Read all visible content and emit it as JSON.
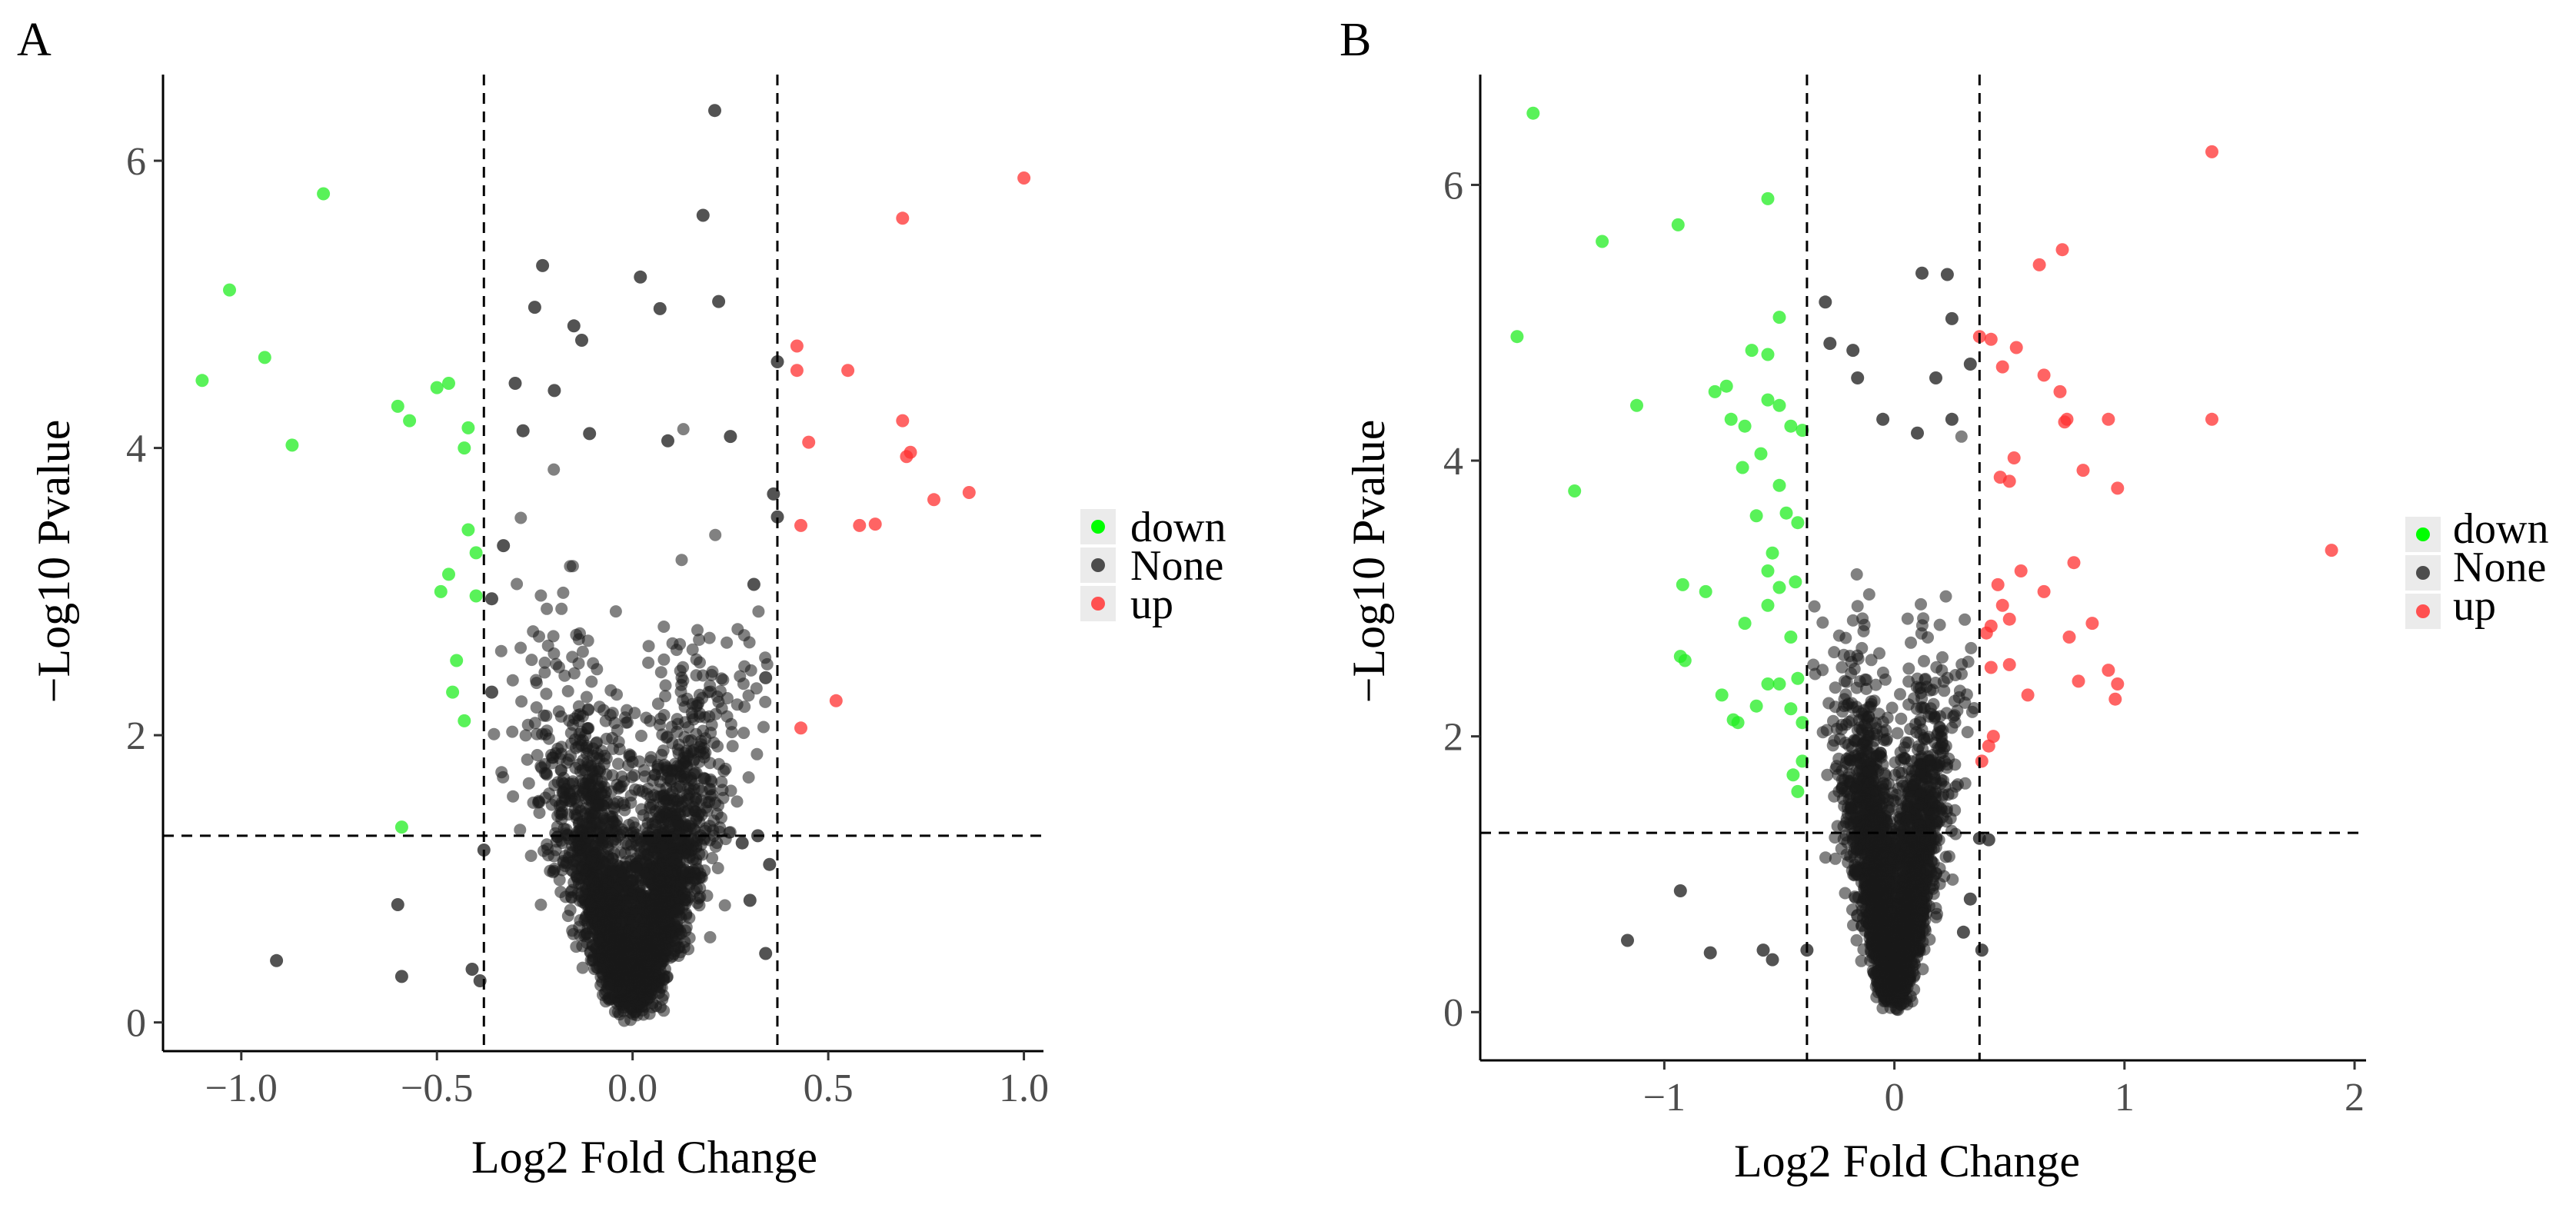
{
  "chart_data": [
    {
      "type": "scatter",
      "panel_label": "A",
      "xlabel": "Log2 Fold Change",
      "ylabel": "−Log10 Pvalue",
      "xlim": [
        -1.2,
        1.05
      ],
      "ylim": [
        -0.2,
        6.6
      ],
      "xticks": [
        -1.0,
        -0.5,
        0.0,
        0.5,
        1.0
      ],
      "xtick_labels": [
        "−1.0",
        "−0.5",
        "0.0",
        "0.5",
        "1.0"
      ],
      "yticks": [
        0,
        2,
        4,
        6
      ],
      "ytick_labels": [
        "0",
        "2",
        "4",
        "6"
      ],
      "thresholds": {
        "x": [
          -0.38,
          0.37
        ],
        "y": 1.3
      },
      "legend": [
        {
          "label": "down",
          "color": "#00FF00"
        },
        {
          "label": "None",
          "color": "#000000"
        },
        {
          "label": "up",
          "color": "#FF0000"
        }
      ],
      "legend_position": "right",
      "series": [
        {
          "name": "down",
          "color": "#00FF00",
          "points": [
            [
              -1.1,
              4.47
            ],
            [
              -1.03,
              5.1
            ],
            [
              -0.94,
              4.63
            ],
            [
              -0.87,
              4.02
            ],
            [
              -0.79,
              5.77
            ],
            [
              -0.6,
              4.29
            ],
            [
              -0.57,
              4.19
            ],
            [
              -0.5,
              4.42
            ],
            [
              -0.47,
              4.45
            ],
            [
              -0.42,
              4.14
            ],
            [
              -0.43,
              4.0
            ],
            [
              -0.42,
              3.43
            ],
            [
              -0.4,
              3.27
            ],
            [
              -0.47,
              3.12
            ],
            [
              -0.49,
              3.0
            ],
            [
              -0.4,
              2.97
            ],
            [
              -0.45,
              2.52
            ],
            [
              -0.46,
              2.3
            ],
            [
              -0.43,
              2.1
            ],
            [
              -0.59,
              1.36
            ]
          ]
        },
        {
          "name": "None",
          "color": "#000000",
          "points": [
            [
              0.21,
              6.35
            ],
            [
              0.18,
              5.62
            ],
            [
              -0.23,
              5.27
            ],
            [
              0.02,
              5.19
            ],
            [
              0.07,
              4.97
            ],
            [
              0.22,
              5.02
            ],
            [
              -0.25,
              4.98
            ],
            [
              -0.15,
              4.85
            ],
            [
              -0.13,
              4.75
            ],
            [
              -0.28,
              4.12
            ],
            [
              -0.3,
              4.45
            ],
            [
              -0.2,
              4.4
            ],
            [
              -0.11,
              4.1
            ],
            [
              0.25,
              4.08
            ],
            [
              0.09,
              4.05
            ],
            [
              0.36,
              3.68
            ],
            [
              0.37,
              3.52
            ],
            [
              0.31,
              3.05
            ],
            [
              0.34,
              2.4
            ],
            [
              -0.36,
              2.3
            ],
            [
              0.37,
              4.6
            ],
            [
              -0.33,
              3.32
            ],
            [
              -0.36,
              2.95
            ],
            [
              -0.38,
              1.2
            ],
            [
              -0.6,
              0.82
            ],
            [
              -0.59,
              0.32
            ],
            [
              -0.41,
              0.37
            ],
            [
              -0.39,
              0.29
            ],
            [
              -0.91,
              0.43
            ],
            [
              0.32,
              1.3
            ],
            [
              0.35,
              1.1
            ],
            [
              0.34,
              0.48
            ],
            [
              0.3,
              0.85
            ],
            [
              0.28,
              1.25
            ]
          ],
          "note": "Dense V-shaped cloud of several thousand non-significant genes centred at (0,0) rendered as background density"
        },
        {
          "name": "up",
          "color": "#FF0000",
          "points": [
            [
              1.0,
              5.88
            ],
            [
              0.69,
              5.6
            ],
            [
              0.42,
              4.71
            ],
            [
              0.42,
              4.54
            ],
            [
              0.55,
              4.54
            ],
            [
              0.69,
              4.19
            ],
            [
              0.71,
              3.97
            ],
            [
              0.7,
              3.94
            ],
            [
              0.45,
              4.04
            ],
            [
              0.86,
              3.69
            ],
            [
              0.77,
              3.64
            ],
            [
              0.58,
              3.46
            ],
            [
              0.62,
              3.47
            ],
            [
              0.43,
              3.46
            ],
            [
              0.52,
              2.24
            ],
            [
              0.43,
              2.05
            ]
          ]
        }
      ]
    },
    {
      "type": "scatter",
      "panel_label": "B",
      "xlabel": "Log2 Fold Change",
      "ylabel": "−Log10 Pvalue",
      "xlim": [
        -1.8,
        2.05
      ],
      "ylim": [
        -0.35,
        6.8
      ],
      "xticks": [
        -1,
        0,
        1,
        2
      ],
      "xtick_labels": [
        "−1",
        "0",
        "1",
        "2"
      ],
      "yticks": [
        0,
        2,
        4,
        6
      ],
      "ytick_labels": [
        "0",
        "2",
        "4",
        "6"
      ],
      "thresholds": {
        "x": [
          -0.38,
          0.37
        ],
        "y": 1.3
      },
      "legend": [
        {
          "label": "down",
          "color": "#00FF00"
        },
        {
          "label": "None",
          "color": "#000000"
        },
        {
          "label": "up",
          "color": "#FF0000"
        }
      ],
      "legend_position": "right",
      "series": [
        {
          "name": "down",
          "color": "#00FF00",
          "points": [
            [
              -1.57,
              6.52
            ],
            [
              -1.64,
              4.9
            ],
            [
              -1.27,
              5.59
            ],
            [
              -1.12,
              4.4
            ],
            [
              -0.94,
              5.71
            ],
            [
              -1.39,
              3.78
            ],
            [
              -0.55,
              5.9
            ],
            [
              -0.5,
              5.04
            ],
            [
              -0.62,
              4.8
            ],
            [
              -0.55,
              4.77
            ],
            [
              -0.73,
              4.54
            ],
            [
              -0.78,
              4.5
            ],
            [
              -0.71,
              4.3
            ],
            [
              -0.65,
              4.25
            ],
            [
              -0.55,
              4.44
            ],
            [
              -0.5,
              4.4
            ],
            [
              -0.45,
              4.25
            ],
            [
              -0.4,
              4.22
            ],
            [
              -0.58,
              4.05
            ],
            [
              -0.66,
              3.95
            ],
            [
              -0.5,
              3.82
            ],
            [
              -0.47,
              3.62
            ],
            [
              -0.42,
              3.55
            ],
            [
              -0.6,
              3.6
            ],
            [
              -0.53,
              3.33
            ],
            [
              -0.55,
              3.2
            ],
            [
              -0.43,
              3.12
            ],
            [
              -0.5,
              3.08
            ],
            [
              -0.92,
              3.1
            ],
            [
              -0.82,
              3.05
            ],
            [
              -0.55,
              2.95
            ],
            [
              -0.65,
              2.82
            ],
            [
              -0.45,
              2.72
            ],
            [
              -0.93,
              2.58
            ],
            [
              -0.91,
              2.55
            ],
            [
              -0.55,
              2.38
            ],
            [
              -0.5,
              2.38
            ],
            [
              -0.42,
              2.42
            ],
            [
              -0.75,
              2.3
            ],
            [
              -0.6,
              2.22
            ],
            [
              -0.7,
              2.12
            ],
            [
              -0.68,
              2.1
            ],
            [
              -0.45,
              2.2
            ],
            [
              -0.4,
              2.1
            ],
            [
              -0.44,
              1.72
            ],
            [
              -0.42,
              1.6
            ],
            [
              -0.4,
              1.82
            ]
          ]
        },
        {
          "name": "None",
          "color": "#000000",
          "points": [
            [
              0.12,
              5.36
            ],
            [
              0.23,
              5.35
            ],
            [
              0.25,
              5.03
            ],
            [
              -0.3,
              5.15
            ],
            [
              -0.28,
              4.85
            ],
            [
              -0.18,
              4.8
            ],
            [
              -0.16,
              4.6
            ],
            [
              0.18,
              4.6
            ],
            [
              0.25,
              4.3
            ],
            [
              0.33,
              4.7
            ],
            [
              -0.05,
              4.3
            ],
            [
              0.1,
              4.2
            ],
            [
              -0.93,
              0.88
            ],
            [
              -1.16,
              0.52
            ],
            [
              -0.8,
              0.43
            ],
            [
              -0.57,
              0.45
            ],
            [
              -0.53,
              0.38
            ],
            [
              -0.38,
              0.45
            ],
            [
              -0.17,
              1.03
            ],
            [
              -0.16,
              0.7
            ],
            [
              0.37,
              1.26
            ],
            [
              0.41,
              1.25
            ],
            [
              0.38,
              0.45
            ],
            [
              0.33,
              0.82
            ],
            [
              0.3,
              0.58
            ]
          ],
          "note": "Dense V-shaped cloud of several thousand non-significant genes centred at (0,0) rendered as background density"
        },
        {
          "name": "up",
          "color": "#FF0000",
          "points": [
            [
              1.38,
              6.24
            ],
            [
              0.73,
              5.53
            ],
            [
              0.63,
              5.42
            ],
            [
              0.37,
              4.9
            ],
            [
              0.42,
              4.88
            ],
            [
              0.47,
              4.68
            ],
            [
              0.53,
              4.82
            ],
            [
              0.65,
              4.62
            ],
            [
              0.72,
              4.5
            ],
            [
              0.75,
              4.3
            ],
            [
              0.74,
              4.28
            ],
            [
              0.93,
              4.3
            ],
            [
              1.38,
              4.3
            ],
            [
              0.52,
              4.02
            ],
            [
              0.5,
              3.85
            ],
            [
              0.46,
              3.88
            ],
            [
              0.82,
              3.93
            ],
            [
              0.97,
              3.8
            ],
            [
              1.9,
              3.35
            ],
            [
              0.78,
              3.26
            ],
            [
              0.45,
              3.1
            ],
            [
              0.47,
              2.95
            ],
            [
              0.5,
              2.85
            ],
            [
              0.42,
              2.8
            ],
            [
              0.4,
              2.75
            ],
            [
              0.55,
              3.2
            ],
            [
              0.65,
              3.05
            ],
            [
              0.76,
              2.72
            ],
            [
              0.86,
              2.82
            ],
            [
              0.5,
              2.52
            ],
            [
              0.42,
              2.5
            ],
            [
              0.58,
              2.3
            ],
            [
              0.8,
              2.4
            ],
            [
              0.93,
              2.48
            ],
            [
              0.97,
              2.38
            ],
            [
              0.96,
              2.27
            ],
            [
              0.43,
              2.0
            ],
            [
              0.41,
              1.93
            ],
            [
              0.38,
              1.82
            ]
          ]
        }
      ]
    }
  ]
}
